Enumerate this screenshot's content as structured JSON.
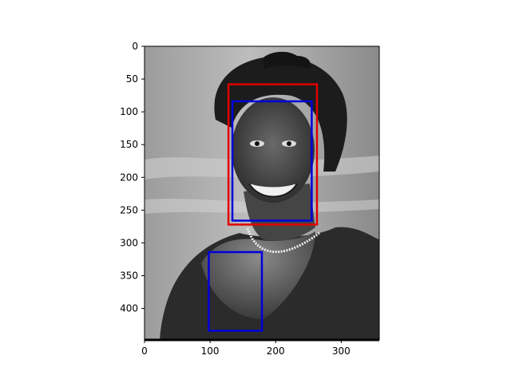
{
  "chart_data": {
    "type": "image_with_bounding_boxes",
    "image_content": "grayscale portrait photo of a smiling woman",
    "xlim": [
      0,
      358
    ],
    "ylim": [
      448,
      0
    ],
    "xticks": [
      0,
      100,
      200,
      300
    ],
    "yticks": [
      0,
      50,
      100,
      150,
      200,
      250,
      300,
      350,
      400
    ],
    "boxes": [
      {
        "name": "red-box",
        "color": "#e00000",
        "x0": 128,
        "y0": 58,
        "x1": 263,
        "y1": 272
      },
      {
        "name": "blue-box-face",
        "color": "#0000dd",
        "x0": 134,
        "y0": 84,
        "x1": 255,
        "y1": 266
      },
      {
        "name": "blue-box-chest",
        "color": "#0000dd",
        "x0": 98,
        "y0": 314,
        "x1": 179,
        "y1": 434
      }
    ]
  }
}
